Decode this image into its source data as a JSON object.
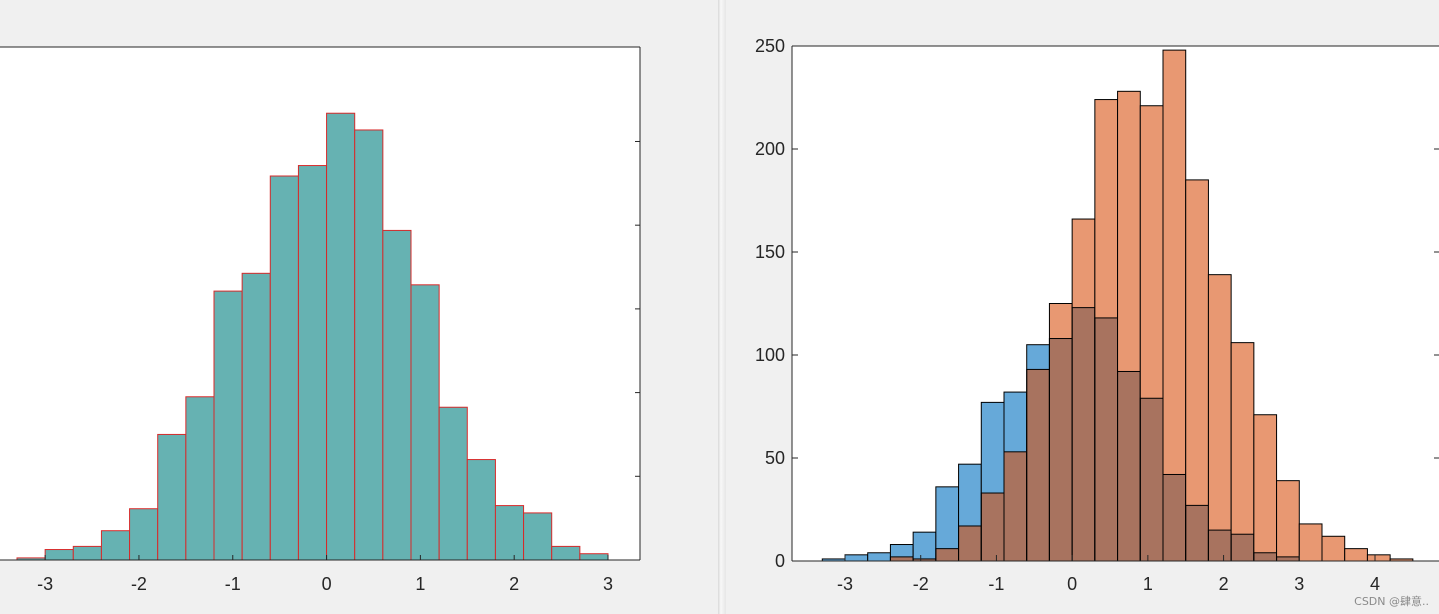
{
  "watermark": "CSDN @肆意..",
  "chart_data": [
    {
      "type": "bar",
      "title": "",
      "xlabel": "",
      "ylabel": "",
      "bin_edges": [
        -3.3,
        -3.0,
        -2.7,
        -2.4,
        -2.1,
        -1.8,
        -1.5,
        -1.2,
        -0.9,
        -0.6,
        -0.3,
        0.0,
        0.3,
        0.6,
        0.9,
        1.2,
        1.5,
        1.8,
        2.1,
        2.4,
        2.7,
        3.0
      ],
      "values": [
        2,
        10,
        13,
        28,
        49,
        120,
        156,
        257,
        274,
        367,
        377,
        427,
        411,
        315,
        263,
        146,
        96,
        52,
        45,
        13,
        6
      ],
      "xlim": [
        -3.3,
        3.33
      ],
      "ylim": [
        0,
        480
      ],
      "xticks": [
        "-3",
        "-2",
        "-1",
        "0",
        "1",
        "2",
        "3"
      ],
      "xtick_values": [
        -3,
        -2,
        -1,
        0,
        1,
        2,
        3
      ],
      "face_color": "#66b2b2",
      "edge_color": "#d62a2a",
      "y_tick_marks_right": [
        80,
        160,
        240,
        320,
        400
      ]
    },
    {
      "type": "bar",
      "title": "",
      "xlabel": "",
      "ylabel": "",
      "xlim": [
        -3.7,
        4.85
      ],
      "ylim": [
        0,
        250
      ],
      "xticks": [
        "-3",
        "-2",
        "-1",
        "0",
        "1",
        "2",
        "3",
        "4"
      ],
      "xtick_values": [
        -3,
        -2,
        -1,
        0,
        1,
        2,
        3,
        4
      ],
      "yticks": [
        "0",
        "50",
        "100",
        "150",
        "200",
        "250"
      ],
      "ytick_values": [
        0,
        50,
        100,
        150,
        200,
        250
      ],
      "bin_edges": [
        -3.3,
        -3.0,
        -2.7,
        -2.4,
        -2.1,
        -1.8,
        -1.5,
        -1.2,
        -0.9,
        -0.6,
        -0.3,
        0.0,
        0.3,
        0.6,
        0.9,
        1.2,
        1.5,
        1.8,
        2.1,
        2.4,
        2.7,
        3.0,
        3.3,
        3.6,
        3.9,
        4.2,
        4.5
      ],
      "series": [
        {
          "values": [
            1,
            3,
            4,
            8,
            14,
            36,
            47,
            77,
            82,
            105,
            108,
            123,
            118,
            92,
            79,
            42,
            27,
            15,
            13,
            4,
            2,
            0,
            0,
            0,
            0,
            0
          ],
          "color": "#66a9d9"
        },
        {
          "values": [
            0,
            0,
            0,
            2,
            1,
            6,
            17,
            33,
            53,
            93,
            125,
            166,
            224,
            228,
            221,
            248,
            185,
            139,
            106,
            71,
            39,
            18,
            12,
            6,
            3,
            1
          ],
          "color": "#e89872"
        }
      ],
      "overlap_color": "#a8735f",
      "edge_color": "#000000",
      "y_tick_marks_right": [
        50,
        100,
        150,
        200
      ]
    }
  ]
}
